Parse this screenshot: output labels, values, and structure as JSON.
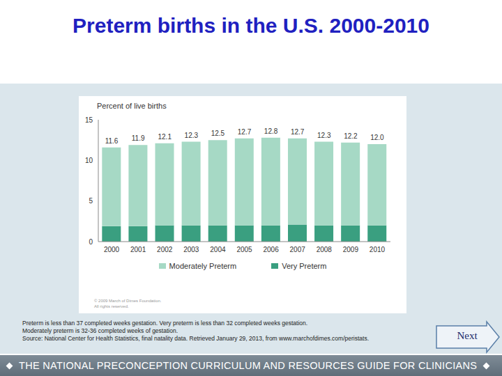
{
  "chart_data": {
    "type": "bar",
    "title": "Preterm births in the U.S. 2000-2010",
    "y_label": "Percent of live births",
    "categories": [
      "2000",
      "2001",
      "2002",
      "2003",
      "2004",
      "2005",
      "2006",
      "2007",
      "2008",
      "2009",
      "2010"
    ],
    "series": [
      {
        "name": "Moderately Preterm",
        "color": "#a6d9c5",
        "values": [
          9.7,
          10.0,
          10.1,
          10.3,
          10.5,
          10.7,
          10.8,
          10.6,
          10.3,
          10.2,
          10.0
        ]
      },
      {
        "name": "Very Preterm",
        "color": "#3a9f80",
        "values": [
          1.9,
          1.9,
          2.0,
          2.0,
          2.0,
          2.0,
          2.0,
          2.1,
          2.0,
          2.0,
          2.0
        ]
      }
    ],
    "totals": [
      11.6,
      11.9,
      12.1,
      12.3,
      12.5,
      12.7,
      12.8,
      12.7,
      12.3,
      12.2,
      12.0
    ],
    "total_labels": [
      "11.6",
      "11.9",
      "12.1",
      "12.3",
      "12.5",
      "12.7",
      "12.8",
      "12.7",
      "12.3",
      "12.2",
      "12.0"
    ],
    "ylim": [
      0,
      15
    ],
    "yticks": [
      0,
      5,
      10,
      15
    ],
    "stacked": true,
    "grid": false,
    "legend": "bottom"
  },
  "copyright": [
    "© 2009 March of Dimes Foundation.",
    "All rights reserved."
  ],
  "notes": [
    "Preterm is less than 37 completed weeks gestation. Very preterm is less than 32 completed weeks gestation.",
    "Moderately preterm is 32-36 completed weeks of gestation.",
    "Source: National Center for Health Statistics, final natality data. Retrieved January 29, 2013, from www.marchofdimes.com/peristats."
  ],
  "button": "Next",
  "footer": "THE NATIONAL PRECONCEPTION CURRICULUM AND RESOURCES GUIDE FOR CLINICIANS"
}
